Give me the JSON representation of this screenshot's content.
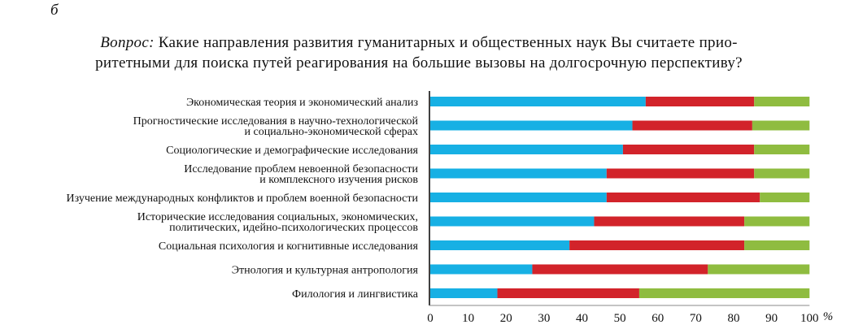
{
  "panel_label": "б",
  "question_prefix": "Вопрос:",
  "question_line1": "Какие направления развития гуманитарных и общественных наук Вы считаете прио-",
  "question_line2": "ритетными для поиска путей реагирования на большие вызовы на долгосрочную перспективу?",
  "chart_data": {
    "type": "bar",
    "orientation": "horizontal",
    "stacked": true,
    "categories": [
      [
        "Экономическая теория и экономический анализ"
      ],
      [
        "Прогностические исследования в научно-технологической",
        "и социально-экономической сферах"
      ],
      [
        "Социологические и демографические исследования"
      ],
      [
        "Исследование проблем невоенной безопасности",
        "и комплексного изучения рисков"
      ],
      [
        "Изучение международных конфликтов и проблем военной безопасности"
      ],
      [
        "Исторические исследования социальных, экономических,",
        "политических, идейно-психологических процессов"
      ],
      [
        "Социальная психология и когнитивные исследования"
      ],
      [
        "Этнология и культурная антропология"
      ],
      [
        "Филология и лингвистика"
      ]
    ],
    "series": [
      {
        "color": "#17b0e4",
        "values": [
          56.8,
          53.3,
          50.8,
          46.5,
          46.5,
          43.2,
          36.7,
          26.9,
          17.7
        ]
      },
      {
        "color": "#d2232a",
        "values": [
          28.6,
          31.6,
          34.6,
          38.9,
          40.4,
          39.6,
          46.1,
          46.3,
          37.4
        ]
      },
      {
        "color": "#8fbc40",
        "values": [
          14.6,
          15.1,
          14.6,
          14.6,
          13.1,
          17.2,
          17.2,
          26.8,
          44.9
        ]
      }
    ],
    "xlim": [
      0,
      100
    ],
    "xticks": [
      "0",
      "10",
      "20",
      "30",
      "40",
      "50",
      "60",
      "70",
      "80",
      "90",
      "100"
    ],
    "xunit": "%"
  }
}
